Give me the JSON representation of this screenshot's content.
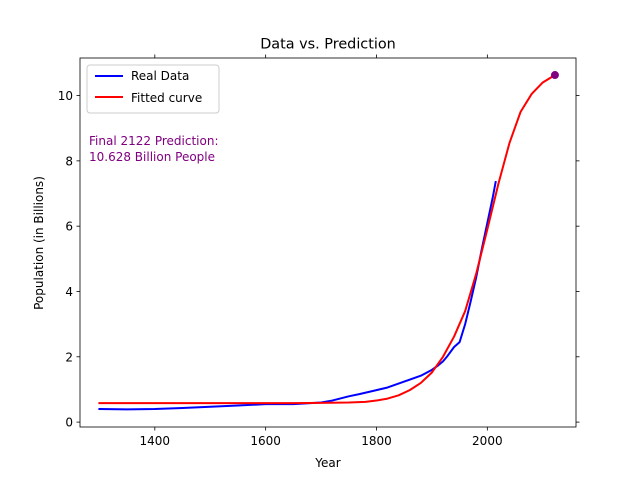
{
  "chart_data": {
    "type": "line",
    "title": "Data vs. Prediction",
    "xlabel": "Year",
    "ylabel": "Population (in Billions)",
    "xlim": [
      1265,
      2160
    ],
    "ylim": [
      -0.15,
      11.15
    ],
    "xticks": [
      1400,
      1600,
      1800,
      2000
    ],
    "yticks": [
      0,
      2,
      4,
      6,
      8,
      10
    ],
    "grid": false,
    "legend_position": "top-left",
    "series": [
      {
        "name": "Real Data",
        "color": "#0000ff",
        "points": [
          [
            1300,
            0.4
          ],
          [
            1350,
            0.39
          ],
          [
            1400,
            0.4
          ],
          [
            1450,
            0.43
          ],
          [
            1500,
            0.47
          ],
          [
            1550,
            0.51
          ],
          [
            1600,
            0.55
          ],
          [
            1650,
            0.55
          ],
          [
            1700,
            0.6
          ],
          [
            1720,
            0.66
          ],
          [
            1750,
            0.79
          ],
          [
            1770,
            0.86
          ],
          [
            1800,
            0.98
          ],
          [
            1820,
            1.06
          ],
          [
            1850,
            1.24
          ],
          [
            1880,
            1.42
          ],
          [
            1900,
            1.6
          ],
          [
            1910,
            1.72
          ],
          [
            1920,
            1.86
          ],
          [
            1927,
            2.0
          ],
          [
            1940,
            2.3
          ],
          [
            1950,
            2.45
          ],
          [
            1960,
            3.0
          ],
          [
            1970,
            3.7
          ],
          [
            1980,
            4.44
          ],
          [
            1990,
            5.3
          ],
          [
            2000,
            6.1
          ],
          [
            2010,
            6.9
          ],
          [
            2015,
            7.35
          ]
        ]
      },
      {
        "name": "Fitted curve",
        "color": "#ff0000",
        "points": [
          [
            1300,
            0.58
          ],
          [
            1400,
            0.58
          ],
          [
            1500,
            0.58
          ],
          [
            1600,
            0.58
          ],
          [
            1650,
            0.58
          ],
          [
            1700,
            0.59
          ],
          [
            1750,
            0.6
          ],
          [
            1780,
            0.62
          ],
          [
            1800,
            0.66
          ],
          [
            1820,
            0.72
          ],
          [
            1840,
            0.82
          ],
          [
            1860,
            0.98
          ],
          [
            1880,
            1.2
          ],
          [
            1900,
            1.52
          ],
          [
            1920,
            2.0
          ],
          [
            1940,
            2.62
          ],
          [
            1960,
            3.4
          ],
          [
            1980,
            4.55
          ],
          [
            2000,
            5.9
          ],
          [
            2020,
            7.3
          ],
          [
            2040,
            8.55
          ],
          [
            2060,
            9.5
          ],
          [
            2080,
            10.05
          ],
          [
            2100,
            10.4
          ],
          [
            2122,
            10.628
          ]
        ]
      }
    ],
    "highlight_point": {
      "x": 2122,
      "y": 10.628,
      "color": "#800080"
    },
    "annotation": {
      "lines": [
        "Final 2122 Prediction:",
        "10.628 Billion People"
      ],
      "color": "#800080"
    }
  }
}
